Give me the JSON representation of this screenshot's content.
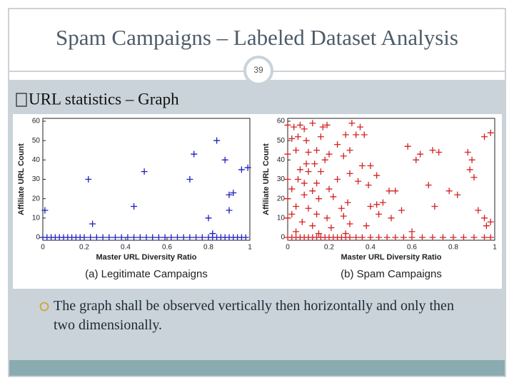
{
  "slide": {
    "title": "Spam Campaigns – Labeled Dataset Analysis",
    "page_number": "39",
    "heading": "URL statistics – Graph",
    "bullet": "The graph shall be observed vertically then horizontally and only then two dimensionally."
  },
  "chart_data": [
    {
      "type": "scatter",
      "caption": "(a) Legitimate Campaigns",
      "x_label": "Master URL Diversity Ratio",
      "y_label": "Affiliate URL Count",
      "color": "#1f1fbf",
      "xlim": [
        0,
        1
      ],
      "ylim": [
        0,
        60
      ],
      "xticks": [
        0,
        0.2,
        0.4,
        0.6,
        0.8,
        1
      ],
      "yticks": [
        0,
        10,
        20,
        30,
        40,
        50,
        60
      ],
      "x": [
        0.01,
        0.22,
        0.24,
        0.49,
        0.44,
        0.73,
        0.71,
        0.84,
        0.88,
        0.96,
        0.99,
        0.92,
        0.9,
        0.9,
        0.8,
        0.82,
        0,
        0.02,
        0.04,
        0.06,
        0.08,
        0.1,
        0.12,
        0.14,
        0.16,
        0.18,
        0.2,
        0.23,
        0.26,
        0.29,
        0.32,
        0.35,
        0.38,
        0.41,
        0.44,
        0.47,
        0.5,
        0.53,
        0.56,
        0.59,
        0.62,
        0.65,
        0.68,
        0.71,
        0.74,
        0.77,
        0.8,
        0.82,
        0.84,
        0.86,
        0.88,
        0.9,
        0.92,
        0.94,
        0.96,
        0.98
      ],
      "values": [
        14,
        30,
        7,
        34,
        16,
        43,
        30,
        50,
        40,
        35,
        36,
        23,
        22,
        14,
        10,
        2,
        0,
        0,
        0,
        0,
        0,
        0,
        0,
        0,
        0,
        0,
        0,
        0,
        0,
        0,
        0,
        0,
        0,
        0,
        0,
        0,
        0,
        0,
        0,
        0,
        0,
        0,
        0,
        0,
        0,
        0,
        0,
        0,
        0,
        0,
        0,
        0,
        0,
        0,
        0,
        0
      ]
    },
    {
      "type": "scatter",
      "caption": "(b) Spam Campaigns",
      "x_label": "Master URL Diversity Ratio",
      "y_label": "Affiliate URL Count",
      "color": "#d42020",
      "xlim": [
        0,
        1
      ],
      "ylim": [
        0,
        60
      ],
      "xticks": [
        0,
        0.2,
        0.4,
        0.6,
        0.8,
        1
      ],
      "yticks": [
        0,
        10,
        20,
        30,
        40,
        50,
        60
      ],
      "x": [
        0,
        0.03,
        0.06,
        0.08,
        0.12,
        0.17,
        0.19,
        0.31,
        0.35,
        0.28,
        0.33,
        0.37,
        0.02,
        0.05,
        0.09,
        0.16,
        0.24,
        0.58,
        0.7,
        0.73,
        0.87,
        0.95,
        0.98,
        0,
        0.04,
        0.1,
        0.14,
        0.2,
        0.27,
        0.3,
        0.62,
        0.64,
        0.89,
        0.09,
        0.13,
        0.18,
        0.36,
        0.4,
        0.06,
        0.1,
        0.16,
        0.3,
        0.43,
        0.88,
        0.9,
        0,
        0.05,
        0.08,
        0.14,
        0.24,
        0.34,
        0.68,
        0.02,
        0.12,
        0.2,
        0.39,
        0.49,
        0.52,
        0.78,
        0.82,
        0,
        0.08,
        0.15,
        0.22,
        0.29,
        0.43,
        0.46,
        0.04,
        0.1,
        0.26,
        0.4,
        0.55,
        0.71,
        0.92,
        0.02,
        0.14,
        0.19,
        0.27,
        0.44,
        0.5,
        0,
        0.07,
        0.12,
        0.21,
        0.3,
        0.38,
        0.95,
        0.96,
        0.98,
        0.04,
        0.15,
        0.28,
        0.6,
        0,
        0.02,
        0.04,
        0.06,
        0.08,
        0.1,
        0.12,
        0.14,
        0.16,
        0.18,
        0.2,
        0.22,
        0.24,
        0.26,
        0.28,
        0.3,
        0.33,
        0.36,
        0.4,
        0.44,
        0.48,
        0.52,
        0.56,
        0.6,
        0.65,
        0.7,
        0.75,
        0.8,
        0.85,
        0.9,
        0.95,
        0.98
      ],
      "values": [
        58,
        57,
        58,
        56,
        59,
        57,
        58,
        59,
        57,
        53,
        53,
        53,
        51,
        52,
        50,
        52,
        48,
        47,
        45,
        44,
        44,
        52,
        54,
        43,
        45,
        44,
        45,
        43,
        42,
        45,
        40,
        43,
        40,
        38,
        38,
        40,
        37,
        37,
        35,
        34,
        34,
        33,
        32,
        35,
        31,
        30,
        30,
        28,
        28,
        30,
        29,
        27,
        25,
        24,
        25,
        27,
        24,
        24,
        24,
        22,
        20,
        22,
        20,
        21,
        18,
        17,
        18,
        16,
        15,
        15,
        16,
        14,
        16,
        14,
        12,
        12,
        10,
        11,
        12,
        10,
        10,
        8,
        6,
        5,
        7,
        6,
        10,
        6,
        8,
        3,
        2,
        2,
        3,
        0,
        0,
        0,
        0,
        0,
        0,
        0,
        0,
        0,
        0,
        0,
        0,
        0,
        0,
        0,
        0,
        0,
        0,
        0,
        0,
        0,
        0,
        0,
        0,
        0,
        0,
        0,
        0,
        0,
        0,
        0,
        0
      ]
    }
  ]
}
